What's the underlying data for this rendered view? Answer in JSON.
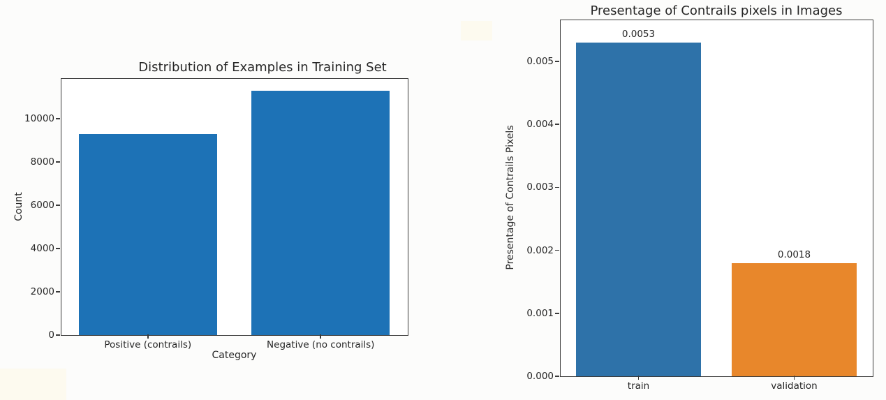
{
  "page": {
    "background": "#fcfcfb"
  },
  "chart_data": [
    {
      "type": "bar",
      "title": "Distribution of Examples in Training Set",
      "xlabel": "Category",
      "ylabel": "Count",
      "categories": [
        "Positive (contrails)",
        "Negative (no contrails)"
      ],
      "values": [
        9280,
        11290
      ],
      "value_labels": null,
      "bar_colors": [
        "#1d72b6",
        "#1d72b6"
      ],
      "yticks": [
        0,
        2000,
        4000,
        6000,
        8000,
        10000
      ],
      "ytick_labels": [
        "0",
        "2000",
        "4000",
        "6000",
        "8000",
        "10000"
      ],
      "ylim": [
        0,
        11810
      ],
      "grid": false,
      "legend": null
    },
    {
      "type": "bar",
      "title": "Presentage of Contrails pixels in Images",
      "xlabel": "",
      "ylabel": "Presentage of Contrails Pixels",
      "categories": [
        "train",
        "validation"
      ],
      "values": [
        0.0053,
        0.0018
      ],
      "value_labels": [
        "0.0053",
        "0.0018"
      ],
      "bar_colors": [
        "#2e72a9",
        "#e8872b"
      ],
      "yticks": [
        0,
        0.001,
        0.002,
        0.003,
        0.004,
        0.005
      ],
      "ytick_labels": [
        "0.000",
        "0.001",
        "0.002",
        "0.003",
        "0.004",
        "0.005"
      ],
      "ylim": [
        0,
        0.005643
      ],
      "grid": false,
      "legend": null
    }
  ]
}
